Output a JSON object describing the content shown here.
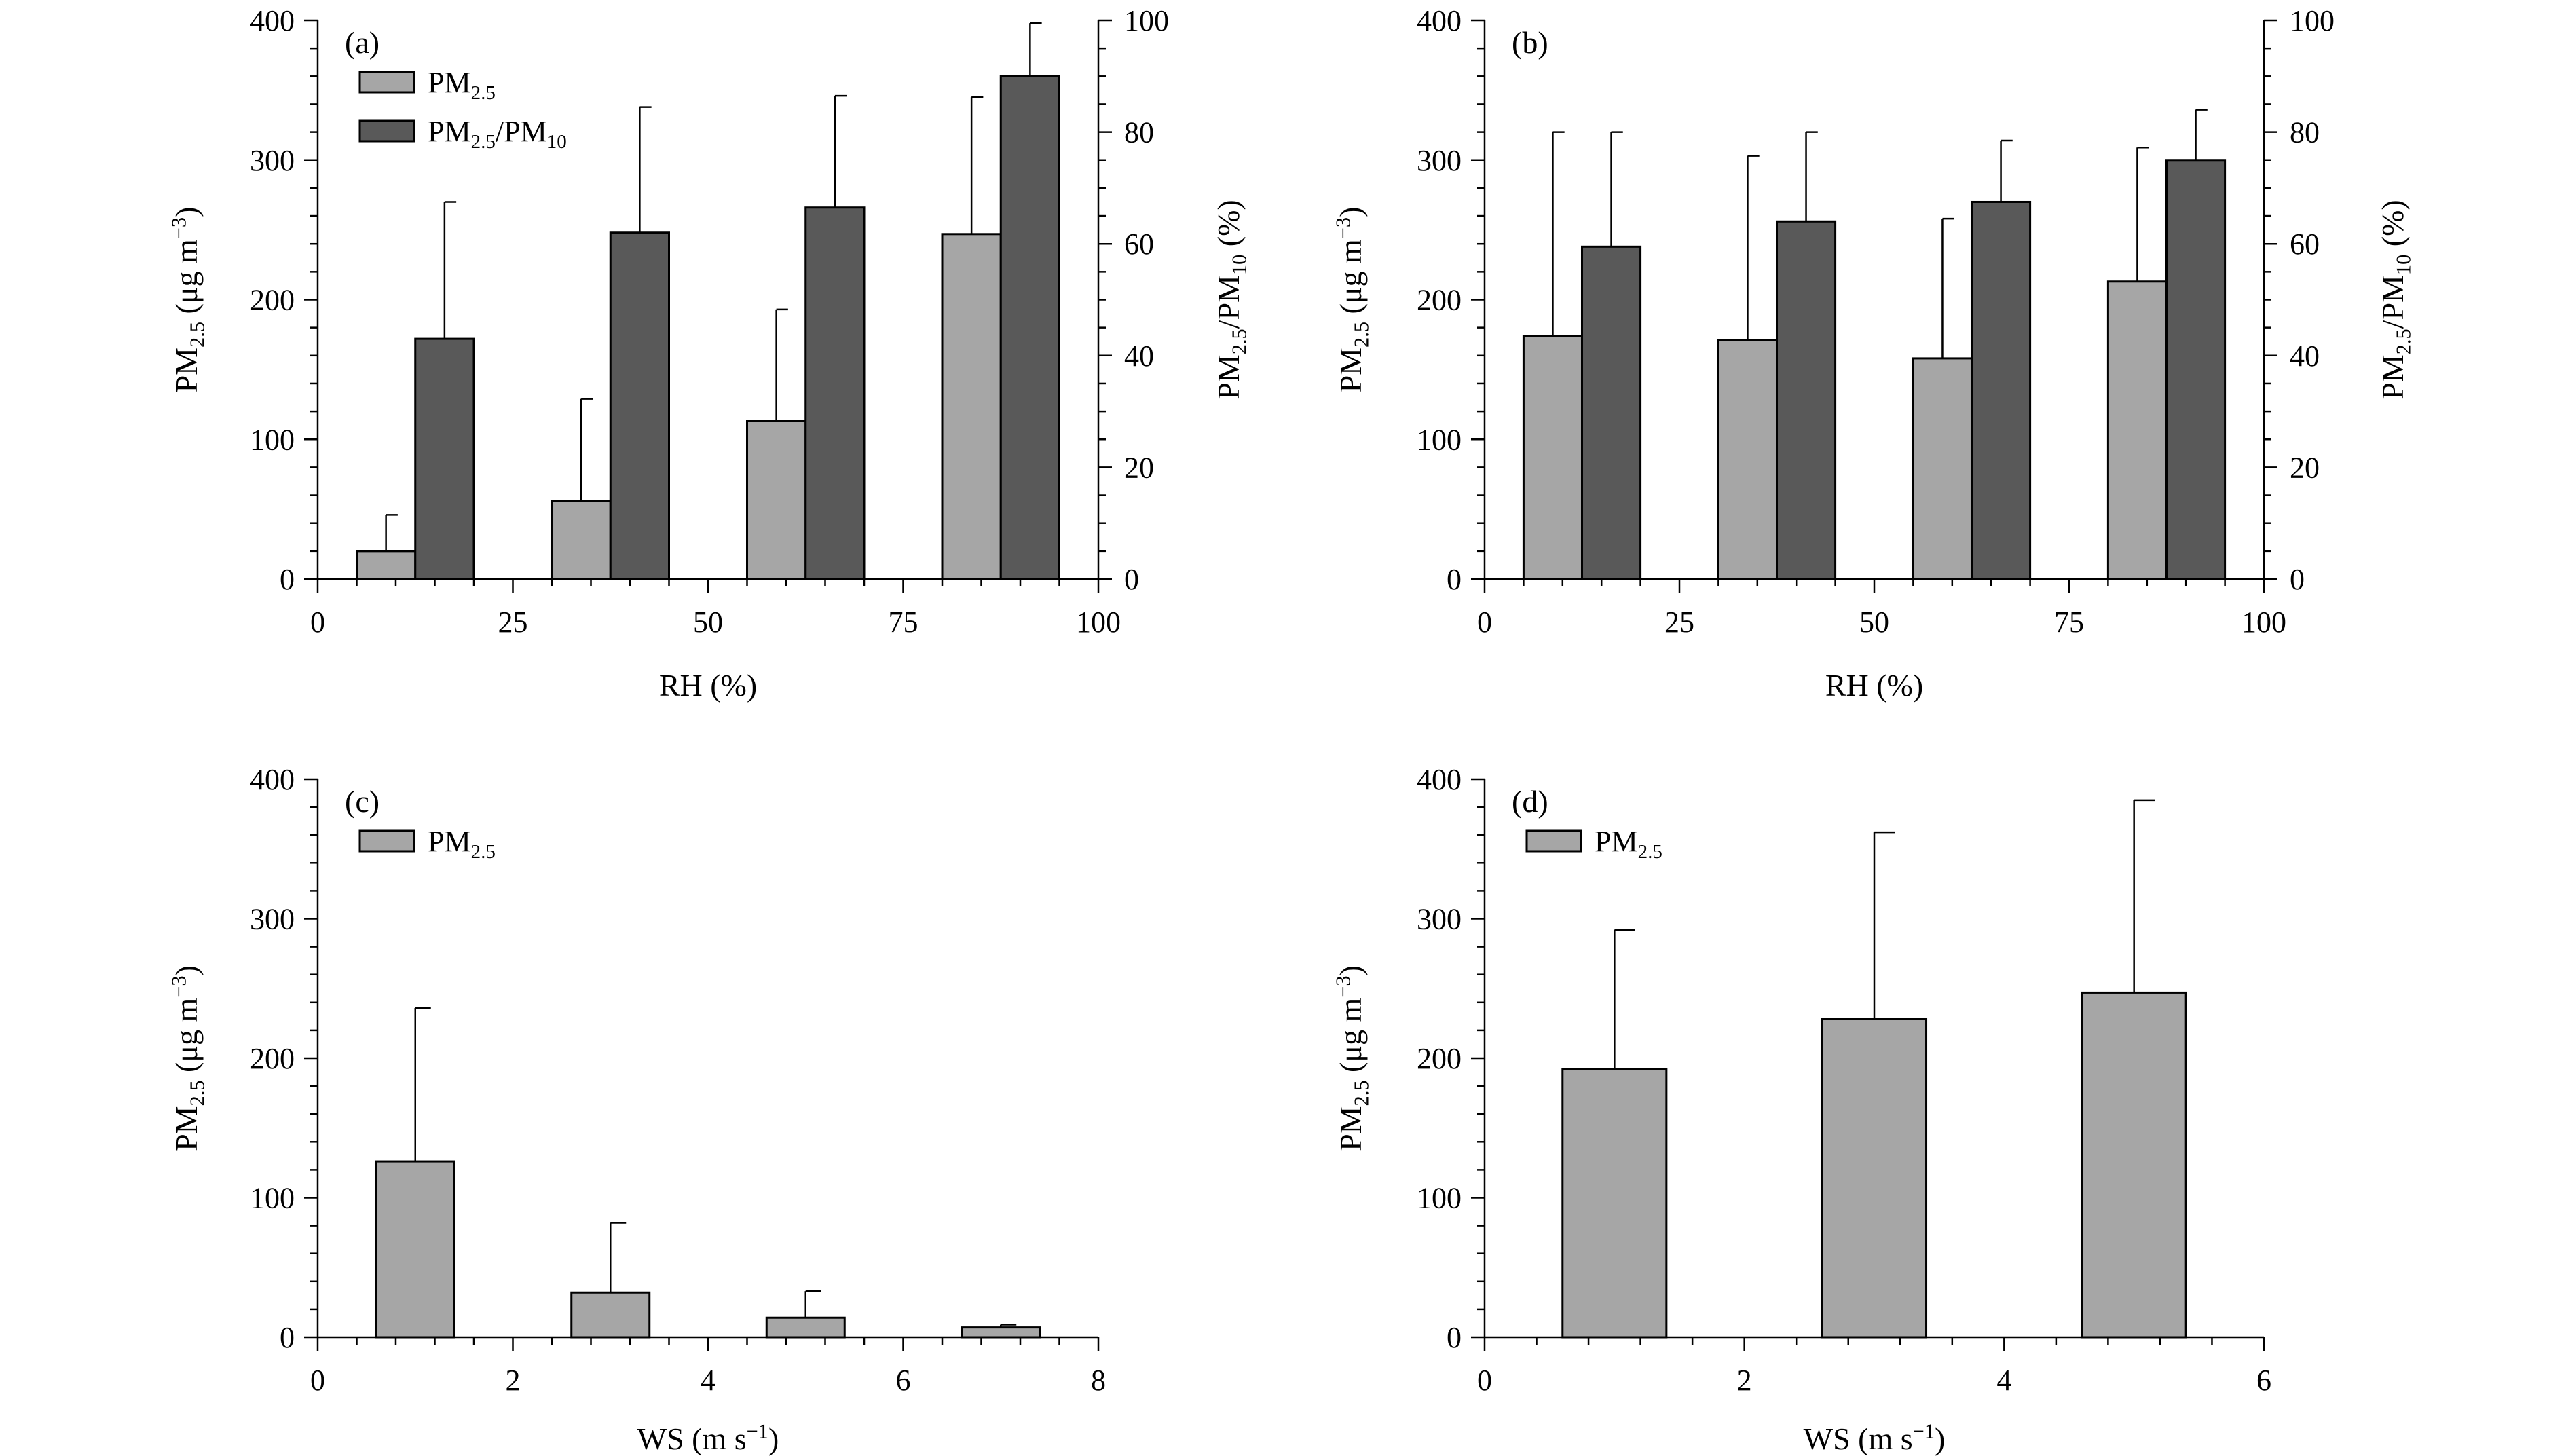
{
  "colors": {
    "pm25": "#a6a6a6",
    "ratio": "#595959",
    "axis": "#000000",
    "background": "#ffffff"
  },
  "chart_data": [
    {
      "id": "a",
      "type": "bar",
      "panel_label": "(a)",
      "xlabel": "RH (%)",
      "ylabel_main": "PM",
      "ylabel_sub": "2.5",
      "ylabel_rest": " (μg m",
      "ylabel_sup": "−3",
      "ylabel_end": ")",
      "y2label_main": "PM",
      "y2label_sub": "2.5",
      "y2label_mid": "/PM",
      "y2label_sub2": "10",
      "y2label_end": " (%)",
      "xlim": [
        0,
        100
      ],
      "xticks": [
        0,
        25,
        50,
        75,
        100
      ],
      "ylim": [
        0,
        400
      ],
      "yticks": [
        0,
        100,
        200,
        300,
        400
      ],
      "y2lim": [
        0,
        100
      ],
      "y2ticks": [
        0,
        20,
        40,
        60,
        80,
        100
      ],
      "bar_width": 7.5,
      "legend": [
        {
          "main": "PM",
          "sub": "2.5",
          "rest": "",
          "sub2": ""
        },
        {
          "main": "PM",
          "sub": "2.5",
          "rest": "/PM",
          "sub2": "10"
        }
      ],
      "series": [
        {
          "name": "PM2.5",
          "axis": "left",
          "color": "pm25",
          "x": [
            8.75,
            33.75,
            58.75,
            83.75
          ],
          "values": [
            20,
            56,
            113,
            247
          ],
          "errors": [
            26,
            73,
            80,
            98
          ]
        },
        {
          "name": "PM2.5/PM10",
          "axis": "right",
          "color": "ratio",
          "x": [
            16.25,
            41.25,
            66.25,
            91.25
          ],
          "values": [
            43,
            62,
            66.5,
            90
          ],
          "errors": [
            24.5,
            22.5,
            20,
            9.5
          ]
        }
      ]
    },
    {
      "id": "b",
      "type": "bar",
      "panel_label": "(b)",
      "xlabel": "RH (%)",
      "ylabel_main": "PM",
      "ylabel_sub": "2.5",
      "ylabel_rest": " (μg m",
      "ylabel_sup": "−3",
      "ylabel_end": ")",
      "y2label_main": "PM",
      "y2label_sub": "2.5",
      "y2label_mid": "/PM",
      "y2label_sub2": "10",
      "y2label_end": " (%)",
      "xlim": [
        0,
        100
      ],
      "xticks": [
        0,
        25,
        50,
        75,
        100
      ],
      "ylim": [
        0,
        400
      ],
      "yticks": [
        0,
        100,
        200,
        300,
        400
      ],
      "y2lim": [
        0,
        100
      ],
      "y2ticks": [
        0,
        20,
        40,
        60,
        80,
        100
      ],
      "bar_width": 7.5,
      "legend": [],
      "series": [
        {
          "name": "PM2.5",
          "axis": "left",
          "color": "pm25",
          "x": [
            8.75,
            33.75,
            58.75,
            83.75
          ],
          "values": [
            174,
            171,
            158,
            213
          ],
          "errors": [
            146,
            132,
            100,
            96
          ]
        },
        {
          "name": "PM2.5/PM10",
          "axis": "right",
          "color": "ratio",
          "x": [
            16.25,
            41.25,
            66.25,
            91.25
          ],
          "values": [
            59.5,
            64,
            67.5,
            75
          ],
          "errors": [
            20.5,
            16,
            11,
            9
          ]
        }
      ]
    },
    {
      "id": "c",
      "type": "bar",
      "panel_label": "(c)",
      "xlabel_main": "WS (m s",
      "xlabel_sup": "−1",
      "xlabel_end": ")",
      "ylabel_main": "PM",
      "ylabel_sub": "2.5",
      "ylabel_rest": " (μg m",
      "ylabel_sup": "−3",
      "ylabel_end": ")",
      "xlim": [
        0,
        8
      ],
      "xticks": [
        0,
        2,
        4,
        6,
        8
      ],
      "ylim": [
        0,
        400
      ],
      "yticks": [
        0,
        100,
        200,
        300,
        400
      ],
      "bar_width": 0.8,
      "legend": [
        {
          "main": "PM",
          "sub": "2.5",
          "rest": "",
          "sub2": ""
        }
      ],
      "series": [
        {
          "name": "PM2.5",
          "axis": "left",
          "color": "pm25",
          "x": [
            1,
            3,
            5,
            7
          ],
          "values": [
            126,
            32,
            14,
            7
          ],
          "errors": [
            110,
            50,
            19,
            2
          ]
        }
      ]
    },
    {
      "id": "d",
      "type": "bar",
      "panel_label": "(d)",
      "xlabel_main": "WS (m s",
      "xlabel_sup": "−1",
      "xlabel_end": ")",
      "ylabel_main": "PM",
      "ylabel_sub": "2.5",
      "ylabel_rest": " (μg m",
      "ylabel_sup": "−3",
      "ylabel_end": ")",
      "xlim": [
        0,
        6
      ],
      "xticks": [
        0,
        2,
        4,
        6
      ],
      "ylim": [
        0,
        400
      ],
      "yticks": [
        0,
        100,
        200,
        300,
        400
      ],
      "bar_width": 0.8,
      "legend": [
        {
          "main": "PM",
          "sub": "2.5",
          "rest": "",
          "sub2": ""
        }
      ],
      "series": [
        {
          "name": "PM2.5",
          "axis": "left",
          "color": "pm25",
          "x": [
            1,
            3,
            5
          ],
          "values": [
            192,
            228,
            247
          ],
          "errors": [
            100,
            134,
            138
          ]
        }
      ]
    }
  ]
}
